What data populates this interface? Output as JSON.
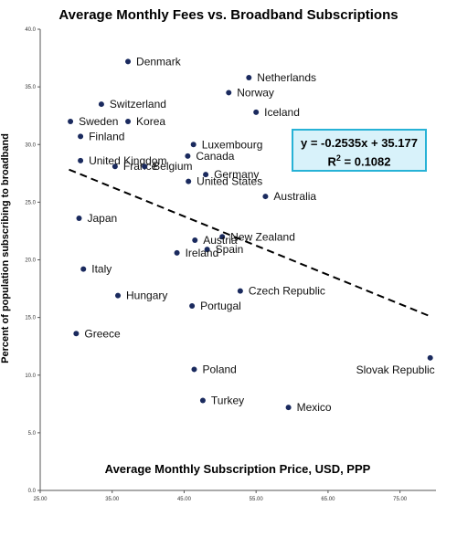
{
  "chart_data": {
    "type": "scatter",
    "title": "Average Monthly Fees vs. Broadband Subscriptions",
    "xlabel": "Average Monthly Subscription Price, USD, PPP",
    "ylabel": "Percent of population subscribing to broadband",
    "xlim": [
      25,
      80
    ],
    "ylim": [
      0,
      40
    ],
    "x_ticks": [
      "25.00",
      "35.00",
      "45.00",
      "55.00",
      "65.00",
      "75.00"
    ],
    "y_ticks": [
      "0.0",
      "5.0",
      "10.0",
      "15.0",
      "20.0",
      "25.0",
      "30.0",
      "35.0",
      "40.0"
    ],
    "grid": false,
    "point_color": "#1a2a5e",
    "trendline": {
      "equation": "y = -0.2535x + 35.177",
      "r2_prefix": "R",
      "r2_sup": "2",
      "r2_value": " = 0.1082",
      "slope": -0.2535,
      "intercept": 35.177,
      "x_start": 29,
      "x_end": 79
    },
    "points": [
      {
        "label": "Denmark",
        "x": 37.2,
        "y": 37.2
      },
      {
        "label": "Netherlands",
        "x": 54.0,
        "y": 35.8
      },
      {
        "label": "Norway",
        "x": 51.2,
        "y": 34.5
      },
      {
        "label": "Switzerland",
        "x": 33.5,
        "y": 33.5
      },
      {
        "label": "Iceland",
        "x": 55.0,
        "y": 32.8
      },
      {
        "label": "Sweden",
        "x": 29.2,
        "y": 32.0
      },
      {
        "label": "Korea",
        "x": 37.2,
        "y": 32.0
      },
      {
        "label": "Finland",
        "x": 30.6,
        "y": 30.7
      },
      {
        "label": "Luxembourg",
        "x": 46.3,
        "y": 30.0
      },
      {
        "label": "Canada",
        "x": 45.5,
        "y": 29.0
      },
      {
        "label": "United Kingdom",
        "x": 30.6,
        "y": 28.6
      },
      {
        "label": "France",
        "x": 35.4,
        "y": 28.1
      },
      {
        "label": "Belgium",
        "x": 39.5,
        "y": 28.1
      },
      {
        "label": "Germany",
        "x": 48.0,
        "y": 27.4
      },
      {
        "label": "United States",
        "x": 45.6,
        "y": 26.8
      },
      {
        "label": "Australia",
        "x": 56.3,
        "y": 25.5
      },
      {
        "label": "Japan",
        "x": 30.4,
        "y": 23.6
      },
      {
        "label": "New Zealand",
        "x": 50.3,
        "y": 22.0
      },
      {
        "label": "Austria",
        "x": 46.5,
        "y": 21.7
      },
      {
        "label": "Spain",
        "x": 48.2,
        "y": 20.9
      },
      {
        "label": "Ireland",
        "x": 44.0,
        "y": 20.6
      },
      {
        "label": "Italy",
        "x": 31.0,
        "y": 19.2
      },
      {
        "label": "Czech Republic",
        "x": 52.8,
        "y": 17.3
      },
      {
        "label": "Hungary",
        "x": 35.8,
        "y": 16.9
      },
      {
        "label": "Portugal",
        "x": 46.1,
        "y": 16.0
      },
      {
        "label": "Greece",
        "x": 30.0,
        "y": 13.6
      },
      {
        "label": "Slovak Republic",
        "x": 79.2,
        "y": 11.5
      },
      {
        "label": "Poland",
        "x": 46.4,
        "y": 10.5
      },
      {
        "label": "Turkey",
        "x": 47.6,
        "y": 7.8
      },
      {
        "label": "Mexico",
        "x": 59.5,
        "y": 7.2
      }
    ]
  }
}
